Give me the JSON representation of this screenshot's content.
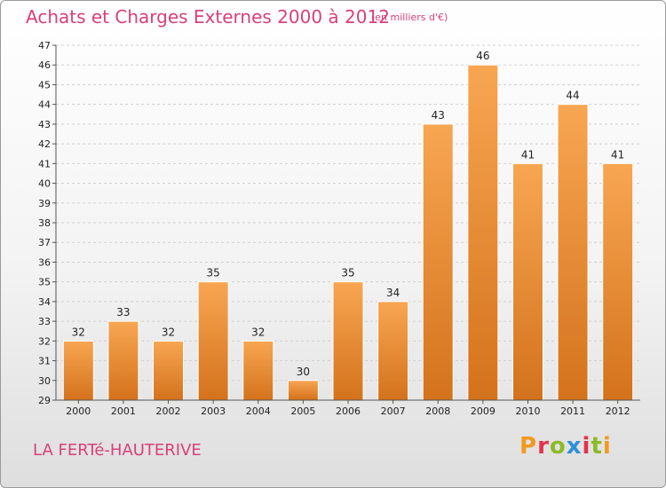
{
  "header": {
    "title": "Achats et Charges Externes 2000 à 2012",
    "unit": "(en milliers d'€)"
  },
  "footer": {
    "commune": "LA FERTé-HAUTERIVE",
    "logo": "Proxiti"
  },
  "colors": {
    "title": "#d8407a",
    "bar_top": "#f8a652",
    "bar_bottom": "#d4721c",
    "logo_letters": [
      "#f29a1f",
      "#e6334a",
      "#8bbb24",
      "#2e8fd8",
      "#e6334a",
      "#8bbb24",
      "#f29a1f"
    ]
  },
  "chart_data": {
    "type": "bar",
    "title": "Achats et Charges Externes 2000 à 2012",
    "categories": [
      "2000",
      "2001",
      "2002",
      "2003",
      "2004",
      "2005",
      "2006",
      "2007",
      "2008",
      "2009",
      "2010",
      "2011",
      "2012"
    ],
    "values": [
      32,
      33,
      32,
      35,
      32,
      30,
      35,
      34,
      43,
      46,
      41,
      44,
      41
    ],
    "ylim": [
      29,
      47
    ],
    "ytick_step": 1,
    "grid": true,
    "legend": "none"
  }
}
